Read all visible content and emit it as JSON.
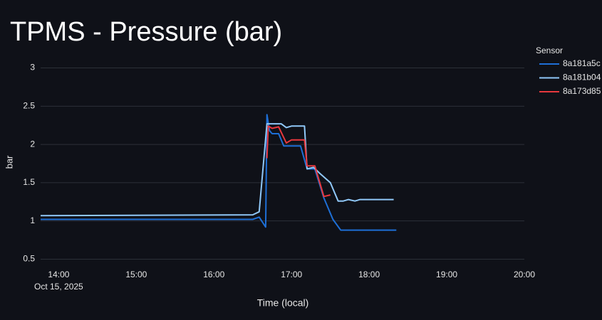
{
  "chart_data": {
    "type": "line",
    "title": "TPMS - Pressure (bar)",
    "y_label": "bar",
    "x_label": "Time (local)",
    "x_date_label": "Oct 15, 2025",
    "legend_title": "Sensor",
    "legend_position": "right",
    "grid": true,
    "xlim": [
      "13:46",
      "20:00"
    ],
    "xticks": [
      "14:00",
      "15:00",
      "16:00",
      "17:00",
      "18:00",
      "19:00",
      "20:00"
    ],
    "ylim": [
      0.43,
      3.07
    ],
    "yticks": [
      0.5,
      1,
      1.5,
      2,
      2.5,
      3
    ],
    "series": [
      {
        "name": "8a181a5c",
        "color": "#1e6fd6",
        "x": [
          "13:46",
          "16:30",
          "16:35",
          "16:40",
          "16:41",
          "16:43",
          "16:45",
          "16:50",
          "16:54",
          "17:00",
          "17:07",
          "17:12",
          "17:18",
          "17:25",
          "17:32",
          "17:38",
          "18:00",
          "18:21"
        ],
        "values": [
          1.02,
          1.02,
          1.05,
          0.92,
          2.39,
          2.18,
          2.14,
          2.14,
          1.98,
          1.98,
          1.98,
          1.68,
          1.68,
          1.3,
          1.02,
          0.88,
          0.88,
          0.88
        ]
      },
      {
        "name": "8a181b04",
        "color": "#90c8f8",
        "x": [
          "13:46",
          "16:30",
          "16:35",
          "16:41",
          "16:45",
          "16:52",
          "16:56",
          "17:00",
          "17:04",
          "17:10",
          "17:12",
          "17:17",
          "17:22",
          "17:30",
          "17:36",
          "17:40",
          "17:44",
          "17:49",
          "17:53",
          "18:00",
          "18:19"
        ],
        "values": [
          1.07,
          1.08,
          1.12,
          2.27,
          2.27,
          2.27,
          2.22,
          2.24,
          2.24,
          2.24,
          1.68,
          1.7,
          1.62,
          1.5,
          1.26,
          1.26,
          1.28,
          1.26,
          1.28,
          1.28,
          1.28
        ]
      },
      {
        "name": "8a173d85",
        "color": "#e8383d",
        "x": [
          "16:41",
          "16:42",
          "16:45",
          "16:50",
          "16:56",
          "17:00",
          "17:10",
          "17:12",
          "17:18",
          "17:25",
          "17:30"
        ],
        "values": [
          1.82,
          2.24,
          2.21,
          2.23,
          2.02,
          2.06,
          2.06,
          1.72,
          1.72,
          1.32,
          1.34
        ]
      }
    ]
  }
}
